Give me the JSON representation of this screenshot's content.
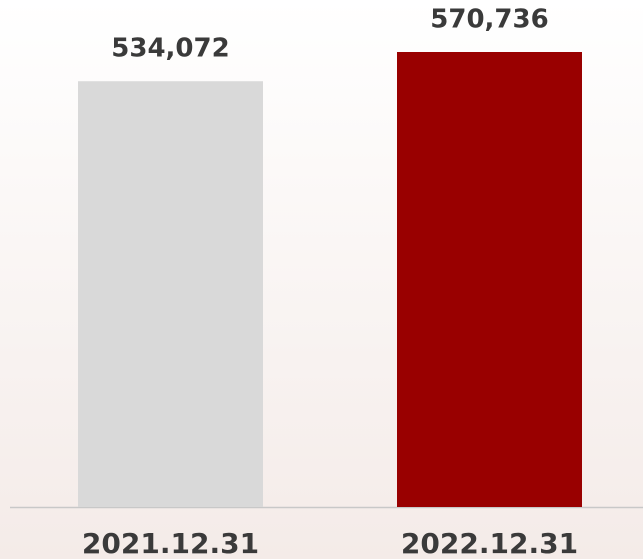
{
  "chart_data": {
    "type": "bar",
    "categories": [
      "2021.12.31",
      "2022.12.31"
    ],
    "values": [
      534072,
      570736
    ],
    "value_labels": [
      "534,072",
      "570,736"
    ],
    "colors": [
      "#d9d9d9",
      "#990000"
    ]
  }
}
